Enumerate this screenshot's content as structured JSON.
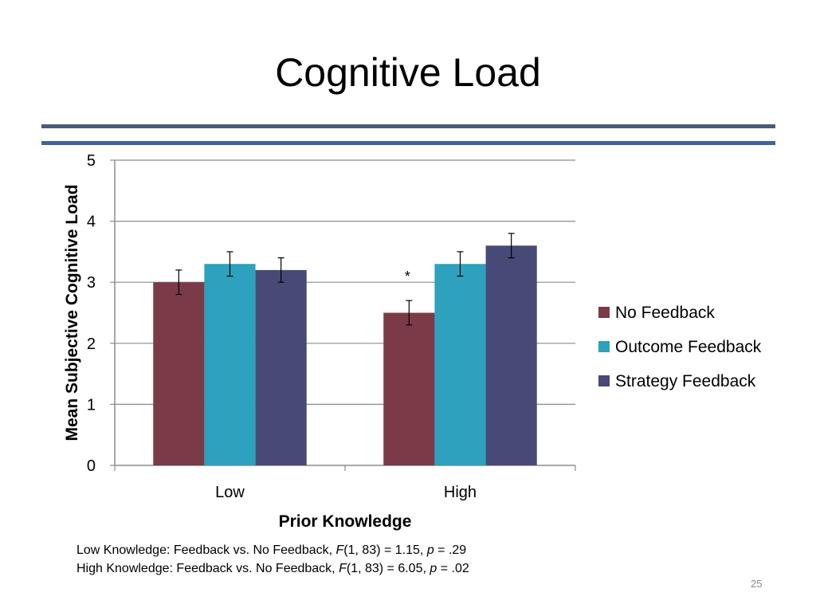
{
  "slide": {
    "title": "Cognitive Load",
    "number": "25"
  },
  "chart_data": {
    "type": "bar",
    "categories": [
      "Low",
      "High"
    ],
    "series": [
      {
        "name": "No Feedback",
        "values": [
          3.0,
          2.5
        ],
        "errors": [
          0.2,
          0.2
        ],
        "color": "#7b3a47"
      },
      {
        "name": "Outcome Feedback",
        "values": [
          3.3,
          3.3
        ],
        "errors": [
          0.2,
          0.2
        ],
        "color": "#2ea1be"
      },
      {
        "name": "Strategy Feedback",
        "values": [
          3.2,
          3.6
        ],
        "errors": [
          0.2,
          0.2
        ],
        "color": "#474a77"
      }
    ],
    "xlabel": "Prior Knowledge",
    "ylabel": "Mean Subjective Cognitive Load",
    "ylim": [
      0,
      5
    ],
    "yticks": [
      0,
      1,
      2,
      3,
      4,
      5
    ],
    "grid": true,
    "legend": "right",
    "annotations": [
      {
        "text": "*",
        "category": "High",
        "series": "No Feedback"
      }
    ]
  },
  "stats": [
    {
      "prefix": "Low Knowledge: Feedback vs. No Feedback, ",
      "stat": "F",
      "df": "(1, 83) = 1.15, ",
      "pvar": "p",
      "pval": " = .29"
    },
    {
      "prefix": "High Knowledge: Feedback vs. No Feedback, ",
      "stat": "F",
      "df": "(1, 83) = 6.05, ",
      "pvar": "p",
      "pval": " = .02"
    }
  ]
}
